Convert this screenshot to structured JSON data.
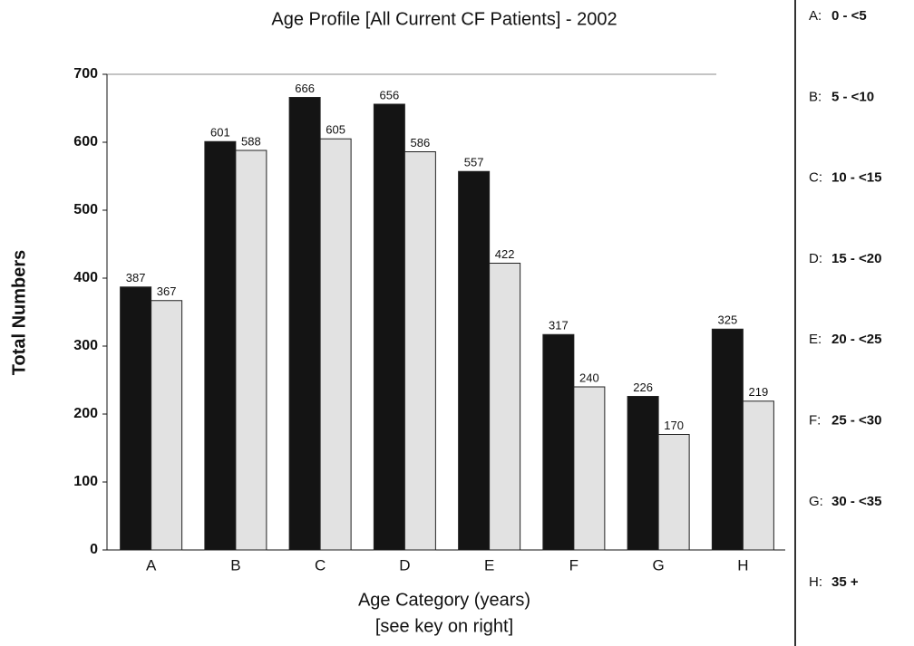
{
  "chart_data": {
    "type": "bar",
    "title": "Age Profile [All Current CF Patients] - 2002",
    "x_label": [
      "Age Category (years)",
      "[see key on right]"
    ],
    "y_label": "Total Numbers",
    "categories": [
      "A",
      "B",
      "C",
      "D",
      "E",
      "F",
      "G",
      "H"
    ],
    "series": [
      {
        "color": "#141414",
        "values": [
          387,
          601,
          666,
          656,
          557,
          317,
          226,
          325
        ]
      },
      {
        "color": "#e2e2e2",
        "values": [
          367,
          588,
          605,
          586,
          422,
          240,
          170,
          219
        ]
      }
    ],
    "ylim": [
      0,
      700
    ],
    "yticks": [
      0,
      100,
      200,
      300,
      400,
      500,
      600,
      700
    ],
    "key": [
      {
        "letter": "A:",
        "range": "0 - <5"
      },
      {
        "letter": "B:",
        "range": "5 - <10"
      },
      {
        "letter": "C:",
        "range": "10 - <15"
      },
      {
        "letter": "D:",
        "range": "15 - <20"
      },
      {
        "letter": "E:",
        "range": "20 - <25"
      },
      {
        "letter": "F:",
        "range": "25 - <30"
      },
      {
        "letter": "G:",
        "range": "30 - <35"
      },
      {
        "letter": "H:",
        "range": "35 +"
      }
    ]
  }
}
